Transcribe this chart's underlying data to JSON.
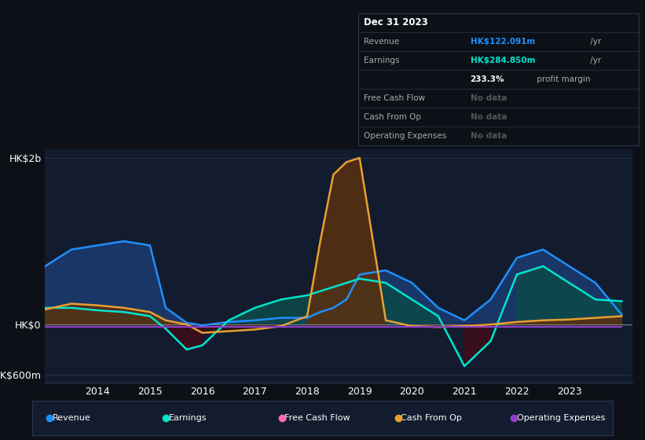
{
  "bg_color": "#0d1117",
  "chart_bg": "#131c2e",
  "grid_color": "#2a3550",
  "ylim": [
    -700,
    2100
  ],
  "yticks": [
    -600,
    0,
    2000
  ],
  "ytick_labels": [
    "-HK$600m",
    "HK$0",
    "HK$2b"
  ],
  "years": [
    2013,
    2013.5,
    2014,
    2014.5,
    2015,
    2015.3,
    2015.7,
    2016,
    2016.5,
    2017,
    2017.5,
    2018,
    2018.25,
    2018.5,
    2018.75,
    2019,
    2019.5,
    2020,
    2020.5,
    2021,
    2021.5,
    2022,
    2022.5,
    2023,
    2023.5,
    2024
  ],
  "revenue": [
    700,
    900,
    950,
    1000,
    950,
    200,
    20,
    -10,
    30,
    50,
    80,
    80,
    150,
    200,
    300,
    600,
    650,
    500,
    200,
    50,
    300,
    800,
    900,
    700,
    500,
    120
  ],
  "earnings": [
    200,
    200,
    170,
    150,
    100,
    -50,
    -300,
    -250,
    50,
    200,
    300,
    350,
    400,
    450,
    500,
    550,
    500,
    300,
    100,
    -500,
    -200,
    600,
    700,
    500,
    300,
    280
  ],
  "cash_from_op": [
    180,
    250,
    230,
    200,
    150,
    50,
    0,
    -100,
    -80,
    -60,
    -20,
    100,
    1000,
    1800,
    1950,
    2000,
    50,
    -20,
    -30,
    -20,
    0,
    30,
    50,
    60,
    80,
    100
  ],
  "op_expenses": [
    -30,
    -30,
    -30,
    -30,
    -30,
    -30,
    -30,
    -30,
    -30,
    -30,
    -30,
    -30,
    -30,
    -30,
    -30,
    -30,
    -30,
    -30,
    -30,
    -30,
    -30,
    -30,
    -30,
    -30,
    -30,
    -30
  ],
  "revenue_color": "#1e90ff",
  "revenue_fill_pos": "#1a3a6e",
  "revenue_fill_neg": "#3a1020",
  "earnings_color": "#00e5cc",
  "earnings_fill_pos": "#0d4a4a",
  "earnings_fill_neg": "#3a0d1a",
  "cash_op_color": "#e8a030",
  "cash_op_fill_pos": "#5a3010",
  "cash_op_fill_neg": "#3a1010",
  "op_exp_color": "#9040c8",
  "free_cf_color": "#ff69b4",
  "legend_bg": "#131c2e",
  "legend_border": "#2a3550",
  "info_box_bg": "#0d1117",
  "info_box_border": "#2a3550",
  "xticks": [
    2014,
    2015,
    2016,
    2017,
    2018,
    2019,
    2020,
    2021,
    2022,
    2023
  ],
  "legend_items": [
    {
      "color": "#1e90ff",
      "label": "Revenue"
    },
    {
      "color": "#00e5cc",
      "label": "Earnings"
    },
    {
      "color": "#ff69b4",
      "label": "Free Cash Flow"
    },
    {
      "color": "#e8a030",
      "label": "Cash From Op"
    },
    {
      "color": "#9040c8",
      "label": "Operating Expenses"
    }
  ],
  "info_title": "Dec 31 2023",
  "info_rows": [
    {
      "label": "Revenue",
      "value": "HK$122.091m",
      "suffix": " /yr",
      "val_color": "#1e90ff",
      "dim": false
    },
    {
      "label": "Earnings",
      "value": "HK$284.850m",
      "suffix": " /yr",
      "val_color": "#00e5cc",
      "dim": false
    },
    {
      "label": "",
      "value": "233.3%",
      "suffix": " profit margin",
      "val_color": "#ffffff",
      "dim": false
    },
    {
      "label": "Free Cash Flow",
      "value": "No data",
      "suffix": "",
      "val_color": "#555555",
      "dim": true
    },
    {
      "label": "Cash From Op",
      "value": "No data",
      "suffix": "",
      "val_color": "#555555",
      "dim": true
    },
    {
      "label": "Operating Expenses",
      "value": "No data",
      "suffix": "",
      "val_color": "#555555",
      "dim": true
    }
  ]
}
